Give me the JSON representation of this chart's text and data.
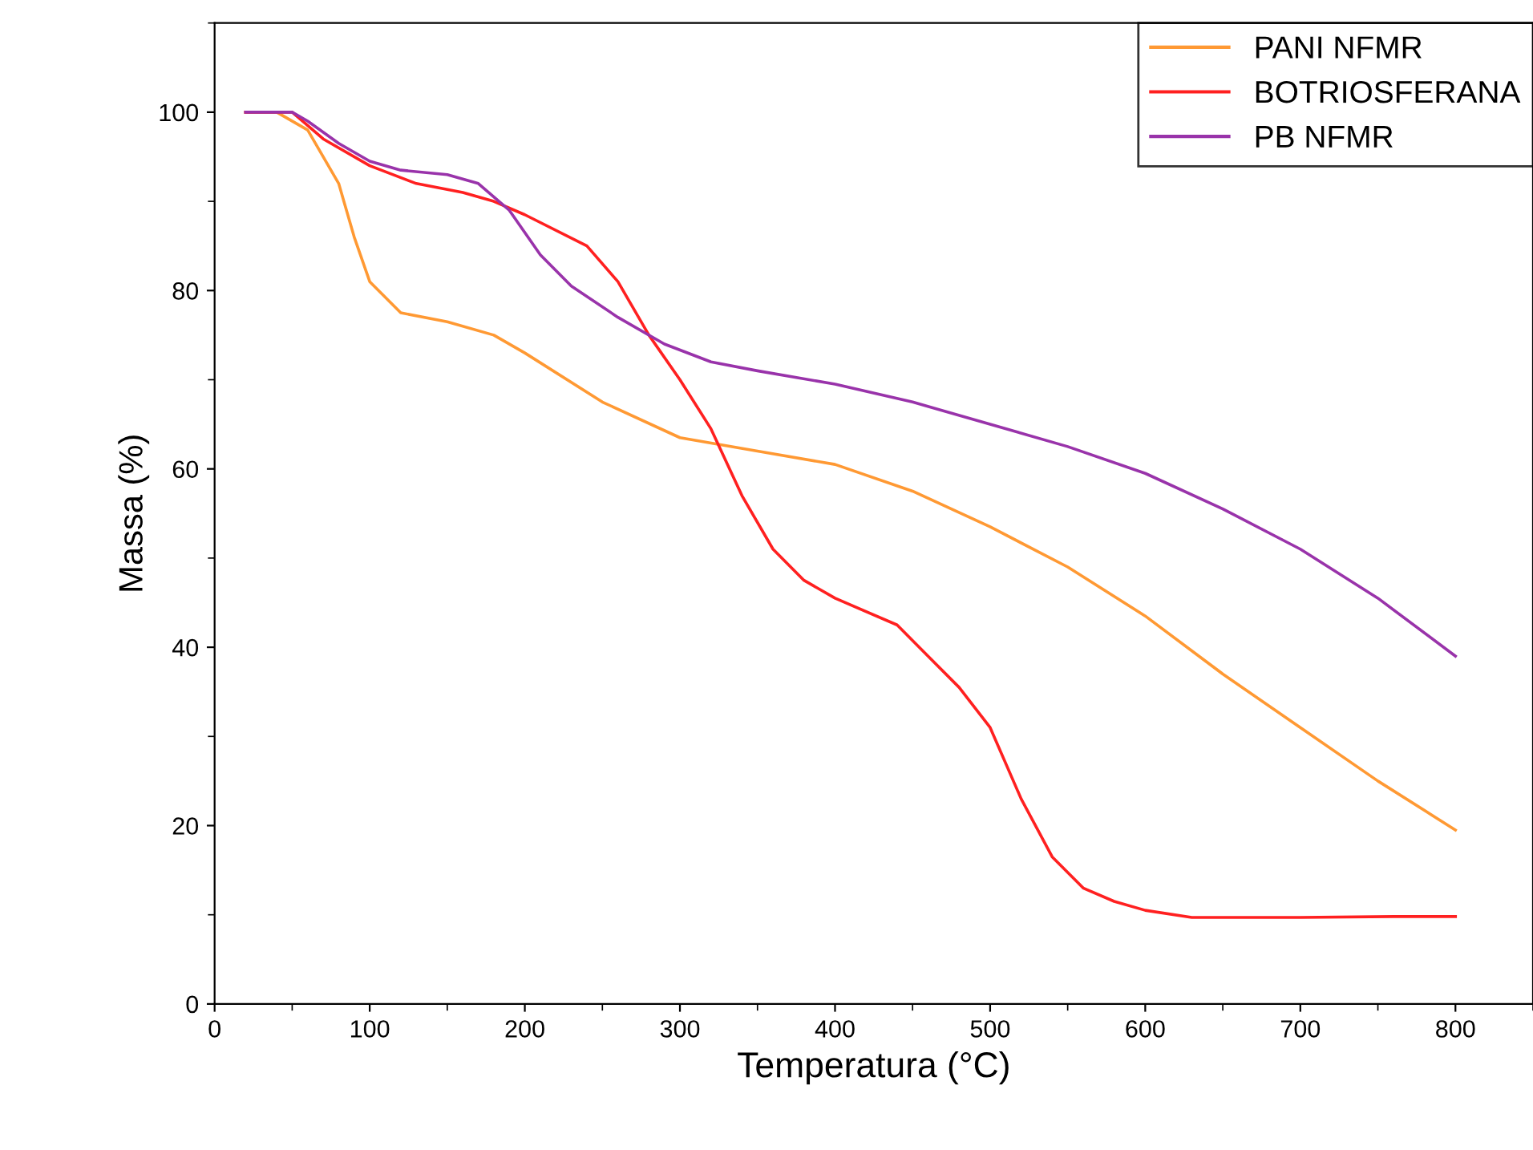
{
  "chart_data": {
    "type": "line",
    "xlabel": "Temperatura (°C)",
    "ylabel": "Massa (%)",
    "xlim": [
      0,
      850
    ],
    "xticks": [
      0,
      100,
      200,
      300,
      400,
      500,
      600,
      700,
      800
    ],
    "ylim": [
      0,
      110
    ],
    "yticks": [
      0,
      20,
      40,
      60,
      80,
      100
    ],
    "grid": false,
    "legend": "top right",
    "line_style": "solid",
    "marker": "none",
    "series": [
      {
        "name": "PANI NFMR",
        "color": "#ff9933",
        "x": [
          20,
          40,
          60,
          80,
          90,
          100,
          120,
          150,
          180,
          200,
          250,
          300,
          350,
          400,
          450,
          500,
          550,
          600,
          650,
          700,
          750,
          800
        ],
        "values": [
          100,
          100,
          98,
          92,
          86,
          81,
          77.5,
          76.5,
          75,
          73,
          67.5,
          63.5,
          62,
          60.5,
          57.5,
          53.5,
          49,
          43.5,
          37,
          31,
          25,
          19.5
        ]
      },
      {
        "name": "BOTRIOSFERANA",
        "color": "#ff2020",
        "x": [
          20,
          50,
          70,
          100,
          130,
          160,
          180,
          200,
          240,
          260,
          280,
          300,
          320,
          340,
          360,
          380,
          400,
          440,
          460,
          480,
          500,
          520,
          540,
          560,
          580,
          600,
          630,
          700,
          760,
          800
        ],
        "values": [
          100,
          100,
          97,
          94,
          92,
          91,
          90,
          88.5,
          85,
          81,
          75,
          70,
          64.5,
          57,
          51,
          47.5,
          45.5,
          42.5,
          39,
          35.5,
          31,
          23,
          16.5,
          13,
          11.5,
          10.5,
          9.7,
          9.7,
          9.8,
          9.8
        ]
      },
      {
        "name": "PB NFMR",
        "color": "#9933aa",
        "x": [
          20,
          50,
          60,
          80,
          100,
          120,
          150,
          170,
          190,
          210,
          230,
          260,
          290,
          320,
          350,
          400,
          450,
          500,
          550,
          600,
          650,
          700,
          750,
          800
        ],
        "values": [
          100,
          100,
          99,
          96.5,
          94.5,
          93.5,
          93,
          92,
          89,
          84,
          80.5,
          77,
          74,
          72,
          71,
          69.5,
          67.5,
          65,
          62.5,
          59.5,
          55.5,
          51,
          45.5,
          39
        ]
      }
    ]
  }
}
